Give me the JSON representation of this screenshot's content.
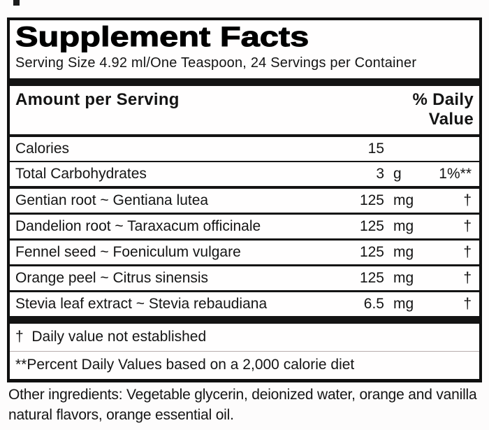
{
  "label": {
    "title": "Supplement Facts",
    "serving_line": "Serving Size 4.92 ml/One Teaspoon, 24 Servings per Container",
    "header": {
      "amount_col": "Amount per Serving",
      "dv_line1": "% Daily",
      "dv_line2": "Value"
    },
    "rows": [
      {
        "name": "Calories",
        "amount": "15",
        "unit": "",
        "dv": ""
      },
      {
        "name": "Total Carbohydrates",
        "amount": "3",
        "unit": "g",
        "dv": "1%**"
      },
      {
        "name": "Gentian root ~ Gentiana lutea",
        "amount": "125",
        "unit": "mg",
        "dv": "†"
      },
      {
        "name": "Dandelion root ~ Taraxacum officinale",
        "amount": "125",
        "unit": "mg",
        "dv": "†"
      },
      {
        "name": "Fennel seed ~ Foeniculum vulgare",
        "amount": "125",
        "unit": "mg",
        "dv": "†"
      },
      {
        "name": "Orange peel ~ Citrus sinensis",
        "amount": "125",
        "unit": "mg",
        "dv": "†"
      },
      {
        "name": "Stevia leaf extract ~ Stevia rebaudiana",
        "amount": "6.5",
        "unit": "mg",
        "dv": "†"
      }
    ],
    "footnotes": [
      "†  Daily value not established",
      "**Percent Daily Values based on a 2,000 calorie diet"
    ],
    "other_ingredients": "Other ingredients: Vegetable glycerin, deionized water, orange and vanilla natural flavors, orange essential oil."
  },
  "colors": {
    "text": "#141414",
    "border": "#0f0f0f",
    "background": "#fdfcfc"
  }
}
